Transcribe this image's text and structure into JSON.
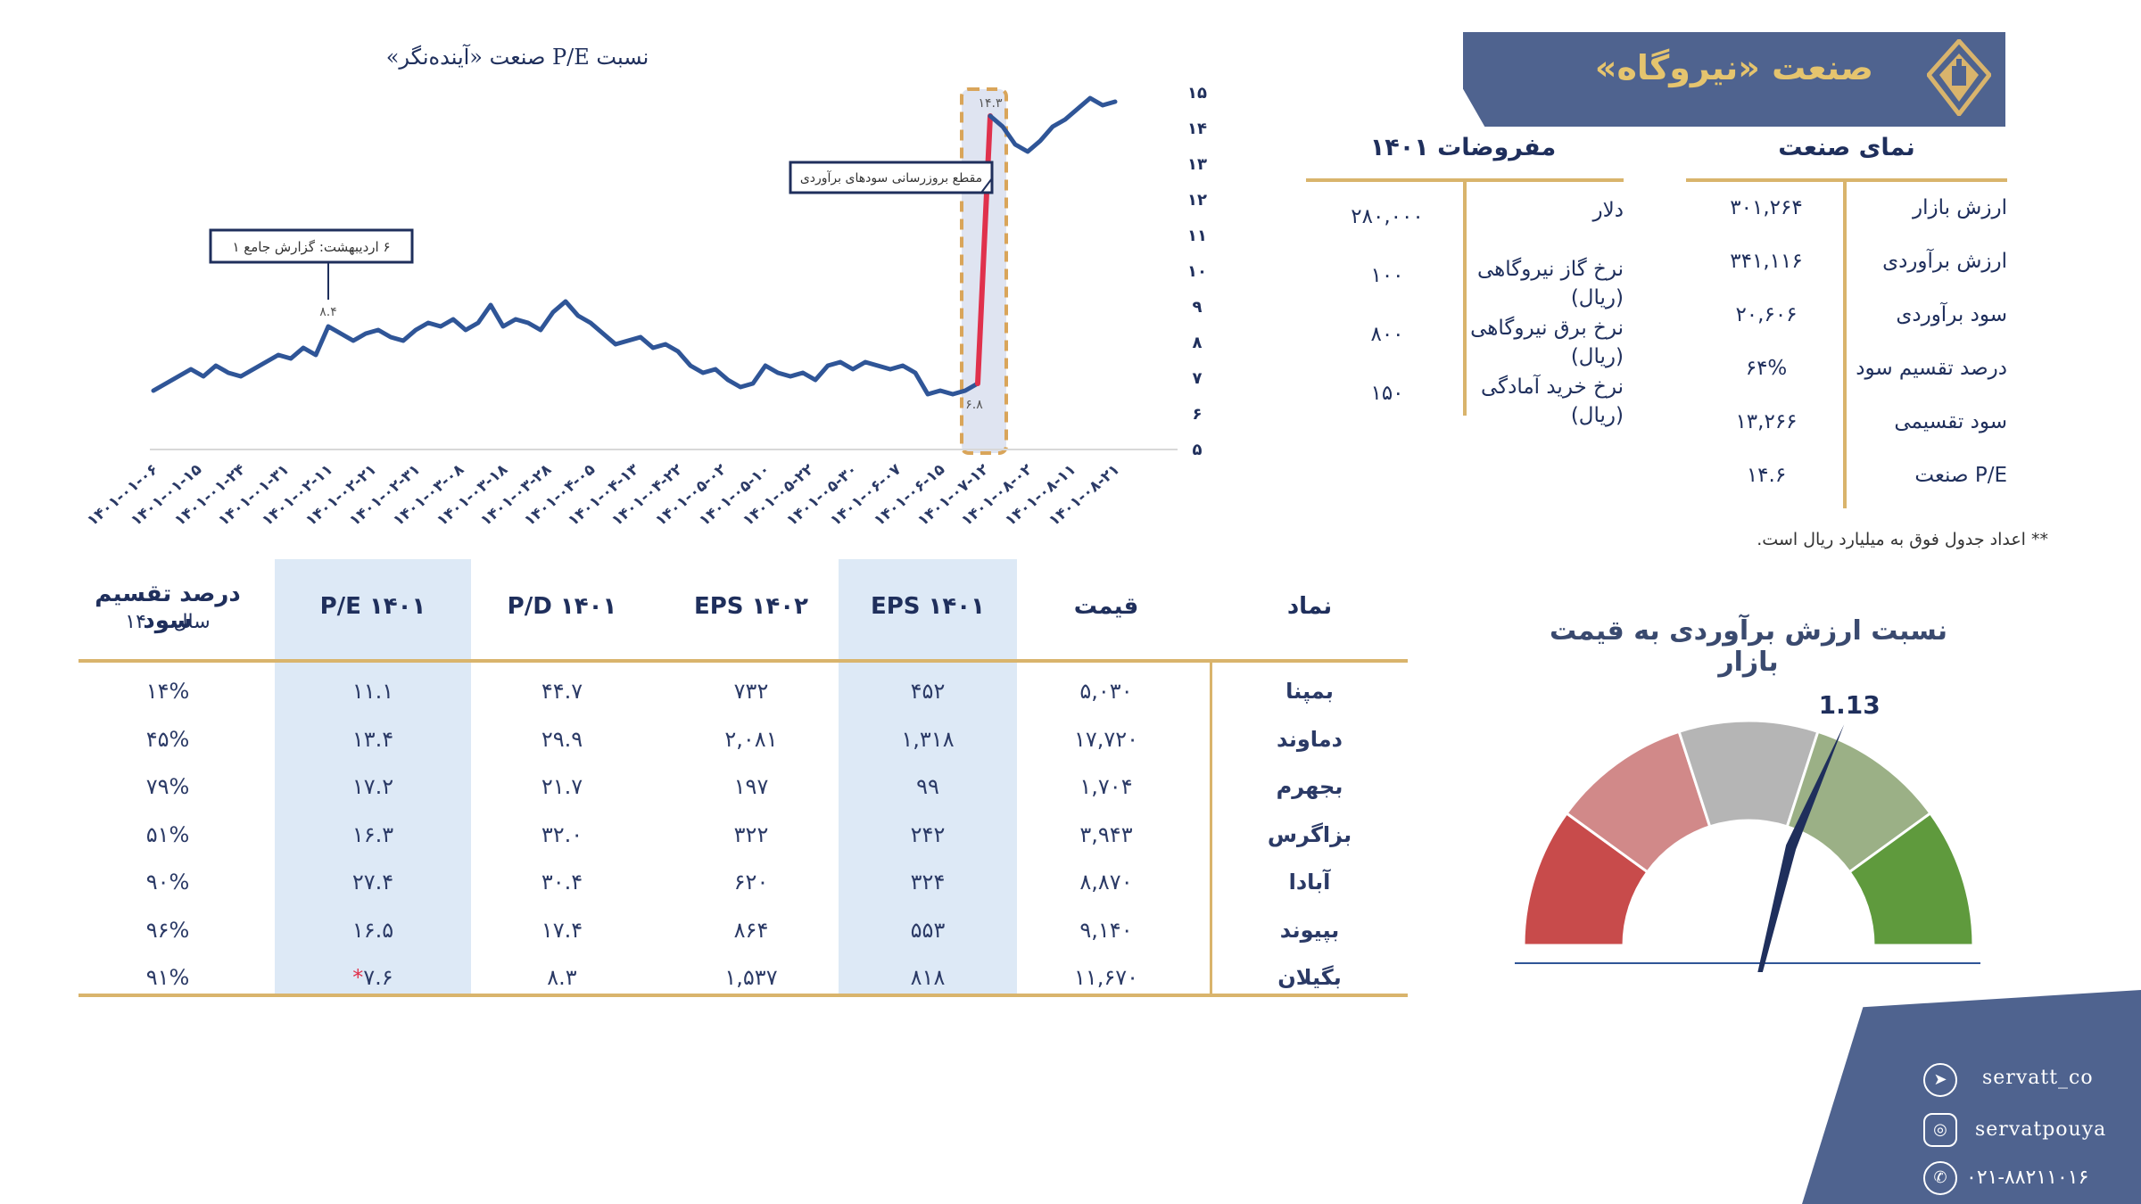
{
  "header": {
    "title": "صنعت «نیروگاه»",
    "logo_color": "#d9b46c",
    "banner_color": "#4f638f"
  },
  "overview": {
    "title": "نمای صنعت",
    "rows": [
      {
        "label": "ارزش بازار",
        "value": "۳۰۱,۲۶۴"
      },
      {
        "label": "ارزش برآوردی",
        "value": "۳۴۱,۱۱۶"
      },
      {
        "label": "سود برآوردی",
        "value": "۲۰,۶۰۶"
      },
      {
        "label": "درصد تقسیم سود",
        "value": "۶۴%"
      },
      {
        "label": "سود تقسیمی",
        "value": "۱۳,۲۶۶"
      },
      {
        "label": "P/E صنعت",
        "value": "۱۴.۶"
      }
    ]
  },
  "assumptions": {
    "title": "مفروضات ۱۴۰۱",
    "rows": [
      {
        "label": "دلار",
        "value": "۲۸۰,۰۰۰"
      },
      {
        "label": "نرخ گاز نیروگاهی (ریال)",
        "value": "۱۰۰"
      },
      {
        "label": "نرخ برق نیروگاهی (ریال)",
        "value": "۸۰۰"
      },
      {
        "label": "نرخ خرید آمادگی (ریال)",
        "value": "۱۵۰"
      }
    ]
  },
  "footnote": "** اعداد جدول فوق به میلیارد ریال است.",
  "table": {
    "headers": {
      "symbol": "نماد",
      "price": "قیمت",
      "eps1401": "EPS ۱۴۰۱",
      "eps1402": "EPS ۱۴۰۲",
      "pd1401": "P/D ۱۴۰۱",
      "pe1401": "P/E ۱۴۰۱",
      "payout": "درصد تقسیم سود",
      "payout_sub": "سال ۱۴۰۰"
    },
    "rows": [
      {
        "symbol": "بمپنا",
        "price": "۵,۰۳۰",
        "eps1401": "۴۵۲",
        "eps1402": "۷۳۲",
        "pd1401": "۴۴.۷",
        "pe1401": "۱۱.۱",
        "payout": "۱۴%",
        "flag": ""
      },
      {
        "symbol": "دماوند",
        "price": "۱۷,۷۲۰",
        "eps1401": "۱,۳۱۸",
        "eps1402": "۲,۰۸۱",
        "pd1401": "۲۹.۹",
        "pe1401": "۱۳.۴",
        "payout": "۴۵%",
        "flag": ""
      },
      {
        "symbol": "بجهرم",
        "price": "۱,۷۰۴",
        "eps1401": "۹۹",
        "eps1402": "۱۹۷",
        "pd1401": "۲۱.۷",
        "pe1401": "۱۷.۲",
        "payout": "۷۹%",
        "flag": ""
      },
      {
        "symbol": "بزاگرس",
        "price": "۳,۹۴۳",
        "eps1401": "۲۴۲",
        "eps1402": "۳۲۲",
        "pd1401": "۳۲.۰",
        "pe1401": "۱۶.۳",
        "payout": "۵۱%",
        "flag": ""
      },
      {
        "symbol": "آبادا",
        "price": "۸,۸۷۰",
        "eps1401": "۳۲۴",
        "eps1402": "۶۲۰",
        "pd1401": "۳۰.۴",
        "pe1401": "۲۷.۴",
        "payout": "۹۰%",
        "flag": ""
      },
      {
        "symbol": "بپیوند",
        "price": "۹,۱۴۰",
        "eps1401": "۵۵۳",
        "eps1402": "۸۶۴",
        "pd1401": "۱۷.۴",
        "pe1401": "۱۶.۵",
        "payout": "۹۶%",
        "flag": ""
      },
      {
        "symbol": "بگیلان",
        "price": "۱۱,۶۷۰",
        "eps1401": "۸۱۸",
        "eps1402": "۱,۵۳۷",
        "pd1401": "۸.۳",
        "pe1401": "۷.۶",
        "payout": "۹۱%",
        "flag": "*"
      }
    ]
  },
  "gauge": {
    "title": "نسبت ارزش برآوردی به قیمت بازار",
    "value": 1.13,
    "value_label": "1.13",
    "min": 0.5,
    "max": 1.5,
    "zone_colors": [
      "#c84b4b",
      "#d18989",
      "#b5b5b5",
      "#9bb086",
      "#5f9a3d"
    ],
    "needle_color": "#1f2f5c"
  },
  "chart_data": {
    "type": "line",
    "title": "نسبت P/E صنعت «آینده‌نگر»",
    "x_tick_labels": [
      "۱۴۰۱-۰۱-۰۶",
      "۱۴۰۱-۰۱-۱۵",
      "۱۴۰۱-۰۱-۲۴",
      "۱۴۰۱-۰۱-۳۱",
      "۱۴۰۱-۰۲-۱۱",
      "۱۴۰۱-۰۲-۲۱",
      "۱۴۰۱-۰۲-۳۱",
      "۱۴۰۱-۰۳-۰۸",
      "۱۴۰۱-۰۳-۱۸",
      "۱۴۰۱-۰۳-۲۸",
      "۱۴۰۱-۰۴-۰۵",
      "۱۴۰۱-۰۴-۱۳",
      "۱۴۰۱-۰۴-۲۲",
      "۱۴۰۱-۰۵-۰۲",
      "۱۴۰۱-۰۵-۱۰",
      "۱۴۰۱-۰۵-۲۲",
      "۱۴۰۱-۰۵-۳۰",
      "۱۴۰۱-۰۶-۰۷",
      "۱۴۰۱-۰۶-۱۵",
      "۱۴۰۱-۰۷-۱۲",
      "۱۴۰۱-۰۸-۰۲",
      "۱۴۰۱-۰۸-۱۱",
      "۱۴۰۱-۰۸-۲۱"
    ],
    "y_tick_labels": [
      "۵",
      "۶",
      "۷",
      "۸",
      "۹",
      "۱۰",
      "۱۱",
      "۱۲",
      "۱۳",
      "۱۴",
      "۱۵"
    ],
    "ylim": [
      5,
      15
    ],
    "grid": false,
    "series": [
      {
        "color": "#2f5597",
        "values": [
          6.6,
          6.8,
          7.0,
          7.2,
          7.0,
          7.3,
          7.1,
          7.0,
          7.2,
          7.4,
          7.6,
          7.5,
          7.8,
          7.6,
          8.4,
          8.2,
          8.0,
          8.2,
          8.3,
          8.1,
          8.0,
          8.3,
          8.5,
          8.4,
          8.6,
          8.3,
          8.5,
          9.0,
          8.4,
          8.6,
          8.5,
          8.3,
          8.8,
          9.1,
          8.7,
          8.5,
          8.2,
          7.9,
          8.0,
          8.1,
          7.8,
          7.9,
          7.7,
          7.3,
          7.1,
          7.2,
          6.9,
          6.7,
          6.8,
          7.3,
          7.1,
          7.0,
          7.1,
          6.9,
          7.3,
          7.4,
          7.2,
          7.4,
          7.3,
          7.2,
          7.3,
          7.1,
          6.5,
          6.6,
          6.5,
          6.6,
          6.8
        ]
      },
      {
        "color": "#e0314c",
        "values": [
          6.8,
          14.3
        ]
      },
      {
        "color": "#2f5597",
        "values": [
          14.3,
          14.0,
          13.5,
          13.3,
          13.6,
          14.0,
          14.2,
          14.5,
          14.8,
          14.6,
          14.7
        ]
      }
    ],
    "annotations": [
      {
        "text": "۶ اردیبهشت: گزارش جامع ۱",
        "value_label": "۸.۴"
      },
      {
        "text": "مقطع بروزرسانی سودهای برآوردی",
        "value_labels": [
          "۶.۸",
          "۱۴.۳"
        ]
      }
    ]
  },
  "social": {
    "telegram": "servatt_co",
    "instagram": "servatpouya",
    "phone": "۰۲۱-۸۸۲۱۱۰۱۶"
  }
}
